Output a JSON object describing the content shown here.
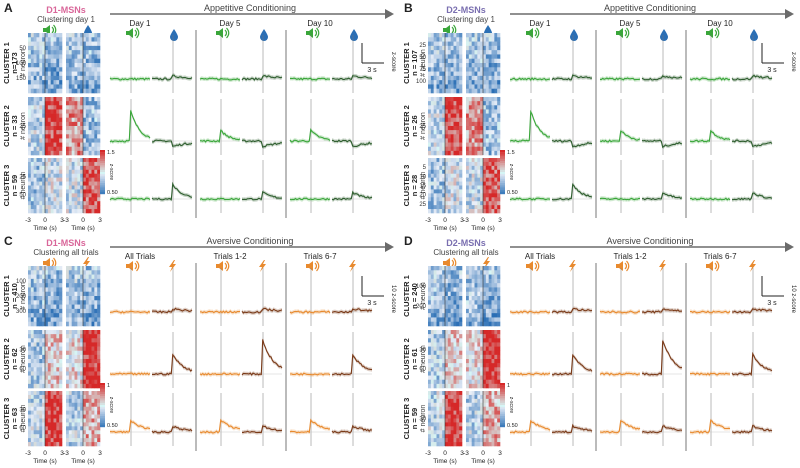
{
  "colors": {
    "green": "#3aa63a",
    "dark_green": "#2e5e2e",
    "orange": "#e88a2e",
    "brown": "#7a3a18",
    "d1_pink": "#d9679a",
    "d2_purple": "#7a6fb0",
    "arrow_gray": "#6b6b6b",
    "heat_red": "#d62828",
    "heat_blue": "#2b6fb5"
  },
  "panels": [
    {
      "letter": "A",
      "cell_type": "D1-MSNs",
      "cell_color": "d1_pink",
      "clustering_label": "Clustering day 1",
      "conditioning_title": "Appetitive Conditioning",
      "mode": "appetitive",
      "stimulus_icons": [
        "speaker-icon",
        "water-drop-icon"
      ],
      "session_labels": [
        "Day 1",
        "Day 5",
        "Day 10"
      ],
      "time_axis_label": "Time (s)",
      "time_ticks": [
        "-3",
        "0",
        "3",
        "-3",
        "0",
        "3"
      ],
      "neuron_axis_label": "# neuron",
      "scale_bar": {
        "time": "3 s",
        "zscore": "z-score"
      },
      "colorbar": {
        "max": "1.5",
        "min": "0.50",
        "label": "z-score"
      },
      "clusters": [
        {
          "name": "CLUSTER 1",
          "n": "n=173",
          "ticks": [
            "50",
            "100",
            "150"
          ],
          "response": "flat"
        },
        {
          "name": "CLUSTER 2",
          "n": "n = 33",
          "ticks": [
            "25"
          ],
          "response": "cue"
        },
        {
          "name": "CLUSTER 3",
          "n": "n = 59",
          "ticks": [
            "25",
            "50"
          ],
          "response": "reward"
        }
      ]
    },
    {
      "letter": "B",
      "cell_type": "D2-MSNs",
      "cell_color": "d2_purple",
      "clustering_label": "Clustering day 1",
      "conditioning_title": "Appetitive Conditioning",
      "mode": "appetitive",
      "stimulus_icons": [
        "speaker-icon",
        "water-drop-icon"
      ],
      "session_labels": [
        "Day 1",
        "Day 5",
        "Day 10"
      ],
      "time_axis_label": "Time (s)",
      "time_ticks": [
        "-3",
        "0",
        "3",
        "-3",
        "0",
        "3"
      ],
      "neuron_axis_label": "# neuron",
      "scale_bar": {
        "time": "3 s",
        "zscore": "z-score"
      },
      "colorbar": {
        "max": "1.5",
        "min": "0.50",
        "label": "z-score"
      },
      "clusters": [
        {
          "name": "CLUSTER 1",
          "n": "n = 107",
          "ticks": [
            "25",
            "50",
            "75",
            "100"
          ],
          "response": "flat"
        },
        {
          "name": "CLUSTER 2",
          "n": "n = 26",
          "ticks": [
            "25"
          ],
          "response": "cue"
        },
        {
          "name": "CLUSTER 3",
          "n": "n = 28",
          "ticks": [
            "5",
            "10",
            "15",
            "20",
            "25"
          ],
          "response": "reward"
        }
      ]
    },
    {
      "letter": "C",
      "cell_type": "D1-MSNs",
      "cell_color": "d1_pink",
      "clustering_label": "Clustering all trials",
      "conditioning_title": "Aversive Conditioning",
      "mode": "aversive",
      "stimulus_icons": [
        "speaker-icon",
        "lightning-icon"
      ],
      "session_labels": [
        "All Trials",
        "Trials 1-2",
        "Trials 6-7"
      ],
      "time_axis_label": "Time (s)",
      "time_ticks": [
        "-3",
        "0",
        "3",
        "-3",
        "0",
        "3"
      ],
      "neuron_axis_label": "# neuron",
      "scale_bar": {
        "time": "3 s",
        "zscore": "10 z-score"
      },
      "colorbar": {
        "max": "1",
        "min": "0.50",
        "label": "z-score"
      },
      "clusters": [
        {
          "name": "CLUSTER 1",
          "n": "n = 410",
          "ticks": [
            "100",
            "200",
            "300"
          ],
          "response": "flat"
        },
        {
          "name": "CLUSTER 2",
          "n": "n = 62",
          "ticks": [
            "30",
            "60"
          ],
          "response": "shock"
        },
        {
          "name": "CLUSTER 3",
          "n": "n = 63",
          "ticks": [
            "30",
            "60"
          ],
          "response": "cue"
        }
      ]
    },
    {
      "letter": "D",
      "cell_type": "D2-MSNs",
      "cell_color": "d2_purple",
      "clustering_label": "Clustering all trials",
      "conditioning_title": "Aversive Conditioning",
      "mode": "aversive",
      "stimulus_icons": [
        "speaker-icon",
        "lightning-icon"
      ],
      "session_labels": [
        "All Trials",
        "Trials 1-2",
        "Trials 6-7"
      ],
      "time_axis_label": "Time (s)",
      "time_ticks": [
        "-3",
        "0",
        "3",
        "-3",
        "0",
        "3"
      ],
      "neuron_axis_label": "# neuron",
      "scale_bar": {
        "time": "3 s",
        "zscore": "10 z-score"
      },
      "colorbar": {
        "max": "1",
        "min": "0.50",
        "label": "z-score"
      },
      "clusters": [
        {
          "name": "CLUSTER 1",
          "n": "n = 240",
          "ticks": [
            "100",
            "200"
          ],
          "response": "flat"
        },
        {
          "name": "CLUSTER 2",
          "n": "n = 61",
          "ticks": [
            "30",
            "60"
          ],
          "response": "shock"
        },
        {
          "name": "CLUSTER 3",
          "n": "n = 59",
          "ticks": [
            "30"
          ],
          "response": "cue"
        }
      ]
    }
  ]
}
